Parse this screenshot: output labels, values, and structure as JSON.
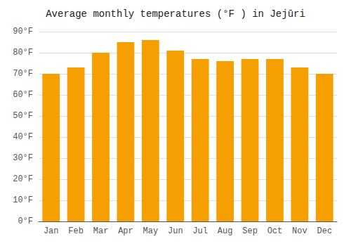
{
  "chart_data": {
    "type": "bar",
    "title": "Average monthly temperatures (°F ) in Jejūri",
    "categories": [
      "Jan",
      "Feb",
      "Mar",
      "Apr",
      "May",
      "Jun",
      "Jul",
      "Aug",
      "Sep",
      "Oct",
      "Nov",
      "Dec"
    ],
    "values": [
      70,
      73,
      80,
      85,
      86,
      81,
      77,
      76,
      77,
      77,
      73,
      70
    ],
    "color": "#F5A000",
    "ylim": [
      0,
      90
    ],
    "yticks": [
      {
        "value": 0,
        "label": "0°F"
      },
      {
        "value": 10,
        "label": "10°F"
      },
      {
        "value": 20,
        "label": "20°F"
      },
      {
        "value": 30,
        "label": "30°F"
      },
      {
        "value": 40,
        "label": "40°F"
      },
      {
        "value": 50,
        "label": "50°F"
      },
      {
        "value": 60,
        "label": "60°F"
      },
      {
        "value": 70,
        "label": "70°F"
      },
      {
        "value": 80,
        "label": "80°F"
      },
      {
        "value": 90,
        "label": "90°F"
      }
    ],
    "grid": true
  }
}
